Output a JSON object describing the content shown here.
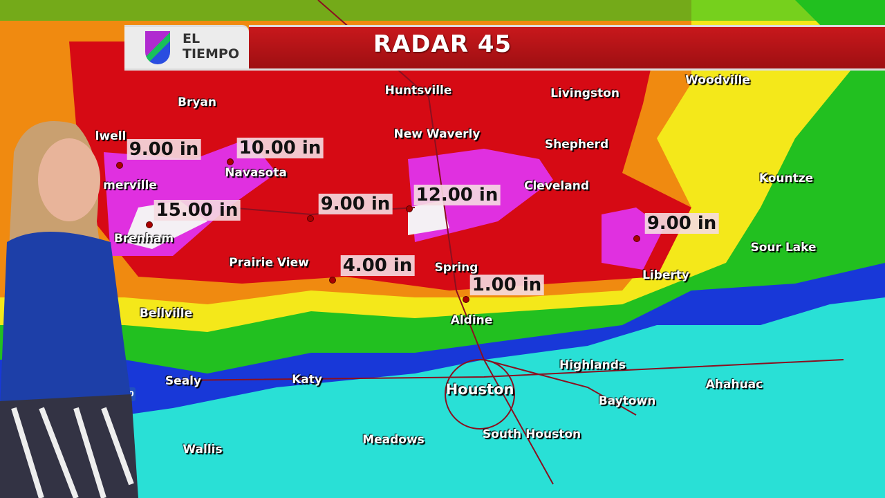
{
  "header": {
    "logo_line1": "EL",
    "logo_line2": "TIEMPO",
    "title": "RADAR 45"
  },
  "colors": {
    "heavy": "#d60a14",
    "extreme": "#e030e0",
    "moderate": "#f08a10",
    "light": "#f4e81a",
    "green": "#22c020",
    "blue": "#1838d8",
    "cyan": "#29e0d6"
  },
  "cities": [
    "Bryan",
    "Huntsville",
    "Livingston",
    "Woodville",
    "New Waverly",
    "Shepherd",
    "Kountze",
    "Navasota",
    "merville",
    "lwell",
    "Cleveland",
    "Brenham",
    "Prairie View",
    "Spring",
    "Liberty",
    "Sour Lake",
    "Bellville",
    "Aldine",
    "Highlands",
    "Sealy",
    "Katy",
    "Houston",
    "Baytown",
    "Ahahuac",
    "Meadows",
    "South Houston",
    "Wallis"
  ],
  "rainfall": [
    "9.00 in",
    "10.00 in",
    "15.00 in",
    "9.00 in",
    "12.00 in",
    "4.00 in",
    "1.00 in",
    "9.00 in"
  ],
  "highway_shield": "10"
}
